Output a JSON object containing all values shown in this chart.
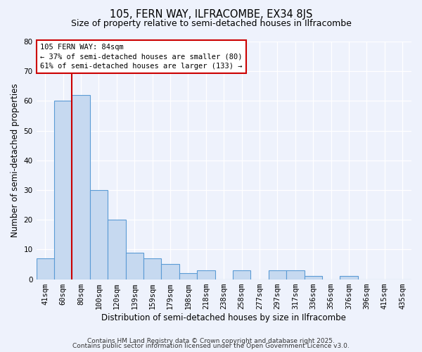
{
  "title": "105, FERN WAY, ILFRACOMBE, EX34 8JS",
  "subtitle": "Size of property relative to semi-detached houses in Ilfracombe",
  "xlabel": "Distribution of semi-detached houses by size in Ilfracombe",
  "ylabel": "Number of semi-detached properties",
  "bin_labels": [
    "41sqm",
    "60sqm",
    "80sqm",
    "100sqm",
    "120sqm",
    "139sqm",
    "159sqm",
    "179sqm",
    "198sqm",
    "218sqm",
    "238sqm",
    "258sqm",
    "277sqm",
    "297sqm",
    "317sqm",
    "336sqm",
    "356sqm",
    "376sqm",
    "396sqm",
    "415sqm",
    "435sqm"
  ],
  "bar_heights": [
    7,
    60,
    62,
    30,
    20,
    9,
    7,
    5,
    2,
    3,
    0,
    3,
    0,
    3,
    3,
    1,
    0,
    1,
    0,
    0,
    0
  ],
  "bar_color": "#c6d9f0",
  "bar_edge_color": "#5b9bd5",
  "property_line_color": "#cc0000",
  "ylim": [
    0,
    80
  ],
  "yticks": [
    0,
    10,
    20,
    30,
    40,
    50,
    60,
    70,
    80
  ],
  "annotation_line1": "105 FERN WAY: 84sqm",
  "annotation_line2": "← 37% of semi-detached houses are smaller (80)",
  "annotation_line3": "61% of semi-detached houses are larger (133) →",
  "annotation_box_edge": "#cc0000",
  "annotation_box_face": "#ffffff",
  "footer1": "Contains HM Land Registry data © Crown copyright and database right 2025.",
  "footer2": "Contains public sector information licensed under the Open Government Licence v3.0.",
  "bg_color": "#eef2fc",
  "grid_color": "#ffffff",
  "title_fontsize": 10.5,
  "subtitle_fontsize": 9,
  "axis_label_fontsize": 8.5,
  "tick_fontsize": 7.5,
  "footer_fontsize": 6.5,
  "annot_fontsize": 7.5
}
